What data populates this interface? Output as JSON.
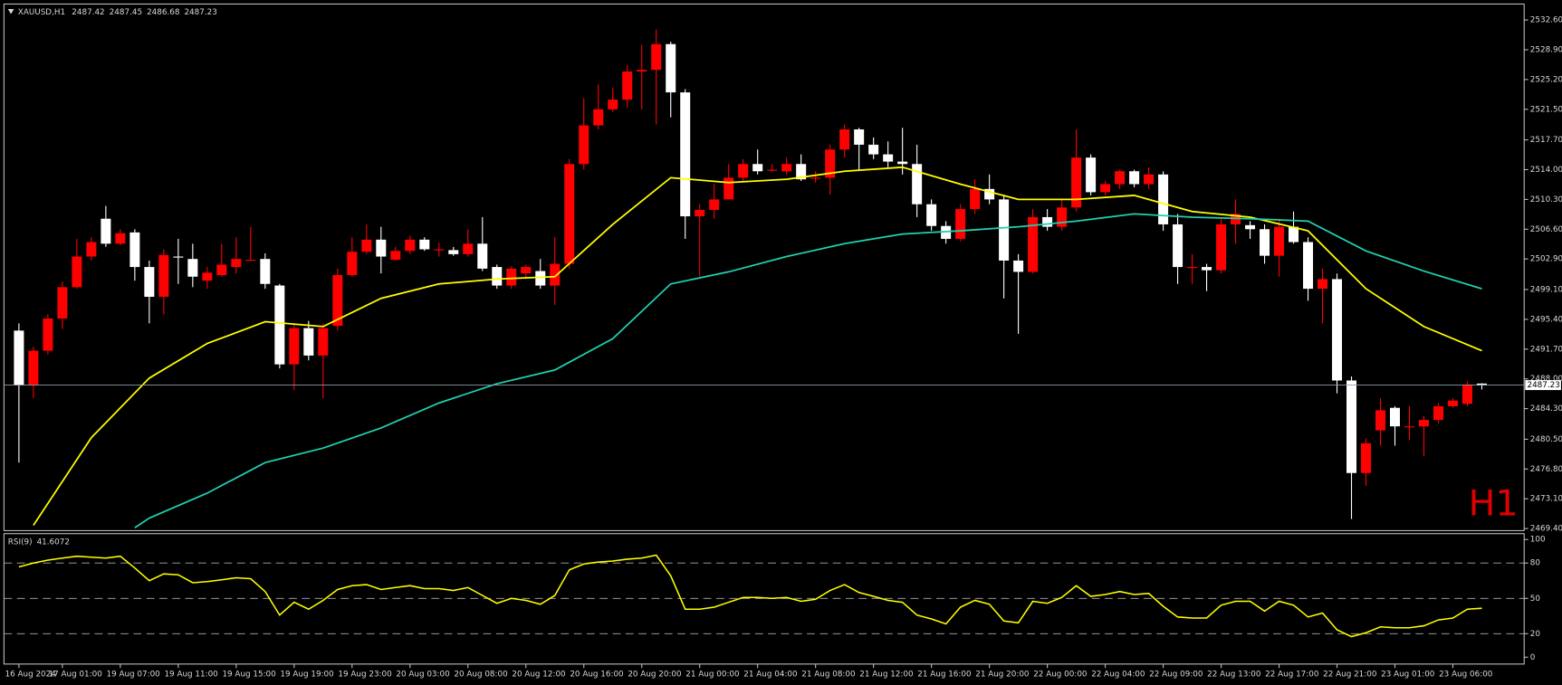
{
  "chart_data": [
    {
      "type": "candlestick",
      "symbol": "XAUUSD,H1",
      "corner_label": "H1",
      "bull_color": "#ff0000",
      "bear_color": "#ffffff",
      "grid": false,
      "ylim": [
        2469.14,
        2534.58
      ],
      "yticks": [
        {
          "value": 2532.6,
          "label": "2532.60"
        },
        {
          "value": 2528.9,
          "label": "2528.90"
        },
        {
          "value": 2525.2,
          "label": "2525.20"
        },
        {
          "value": 2521.5,
          "label": "2521.50"
        },
        {
          "value": 2517.7,
          "label": "2517.70"
        },
        {
          "value": 2514.0,
          "label": "2514.00"
        },
        {
          "value": 2510.3,
          "label": "2510.30"
        },
        {
          "value": 2506.6,
          "label": "2506.60"
        },
        {
          "value": 2502.9,
          "label": "2502.90"
        },
        {
          "value": 2499.1,
          "label": "2499.10"
        },
        {
          "value": 2495.4,
          "label": "2495.40"
        },
        {
          "value": 2491.7,
          "label": "2491.70"
        },
        {
          "value": 2488.0,
          "label": "2488.00"
        },
        {
          "value": 2484.3,
          "label": "2484.30"
        },
        {
          "value": 2480.5,
          "label": "2480.50"
        },
        {
          "value": 2476.8,
          "label": "2476.80"
        },
        {
          "value": 2473.1,
          "label": "2473.10"
        },
        {
          "value": 2469.4,
          "label": "2469.40"
        }
      ],
      "xticks": [
        {
          "value": 0,
          "label": "16 Aug 2024"
        },
        {
          "value": 3,
          "label": "17 Aug 01:00"
        },
        {
          "value": 7,
          "label": "19 Aug 07:00"
        },
        {
          "value": 11,
          "label": "19 Aug 11:00"
        },
        {
          "value": 15,
          "label": "19 Aug 15:00"
        },
        {
          "value": 19,
          "label": "19 Aug 19:00"
        },
        {
          "value": 23,
          "label": "19 Aug 23:00"
        },
        {
          "value": 27,
          "label": "20 Aug 03:00"
        },
        {
          "value": 31,
          "label": "20 Aug 08:00"
        },
        {
          "value": 35,
          "label": "20 Aug 12:00"
        },
        {
          "value": 39,
          "label": "20 Aug 16:00"
        },
        {
          "value": 43,
          "label": "20 Aug 20:00"
        },
        {
          "value": 47,
          "label": "21 Aug 00:00"
        },
        {
          "value": 51,
          "label": "21 Aug 04:00"
        },
        {
          "value": 55,
          "label": "21 Aug 08:00"
        },
        {
          "value": 59,
          "label": "21 Aug 12:00"
        },
        {
          "value": 63,
          "label": "21 Aug 16:00"
        },
        {
          "value": 67,
          "label": "21 Aug 20:00"
        },
        {
          "value": 71,
          "label": "22 Aug 00:00"
        },
        {
          "value": 75,
          "label": "22 Aug 04:00"
        },
        {
          "value": 79,
          "label": "22 Aug 09:00"
        },
        {
          "value": 83,
          "label": "22 Aug 13:00"
        },
        {
          "value": 87,
          "label": "22 Aug 17:00"
        },
        {
          "value": 91,
          "label": "22 Aug 21:00"
        },
        {
          "value": 95,
          "label": "23 Aug 01:00"
        },
        {
          "value": 99,
          "label": "23 Aug 06:00"
        }
      ],
      "open": [
        2494.0,
        2487.2,
        2491.5,
        2495.5,
        2499.4,
        2503.2,
        2507.9,
        2504.8,
        2506.2,
        2501.9,
        2498.2,
        2503.2,
        2502.9,
        2500.2,
        2500.9,
        2501.9,
        2502.7,
        2502.9,
        2499.6,
        2489.8,
        2494.3,
        2490.9,
        2494.6,
        2500.9,
        2503.8,
        2505.3,
        2502.8,
        2503.9,
        2505.3,
        2504.1,
        2504.0,
        2503.5,
        2504.8,
        2501.9,
        2499.6,
        2501.1,
        2501.4,
        2499.6,
        2502.3,
        2514.7,
        2519.5,
        2521.5,
        2522.7,
        2526.2,
        2526.4,
        2529.6,
        2523.6,
        2508.2,
        2509.0,
        2510.3,
        2513.0,
        2514.7,
        2514.0,
        2513.8,
        2514.7,
        2513.0,
        2513.0,
        2516.5,
        2519.0,
        2517.1,
        2515.9,
        2515.0,
        2514.7,
        2509.7,
        2507.0,
        2505.4,
        2509.1,
        2511.6,
        2510.3,
        2502.7,
        2501.3,
        2508.1,
        2506.9,
        2509.3,
        2515.5,
        2511.2,
        2512.2,
        2513.8,
        2512.2,
        2513.4,
        2507.2,
        2501.9,
        2501.9,
        2501.5,
        2507.2,
        2507.1,
        2506.6,
        2503.3,
        2506.9,
        2505.0,
        2499.2,
        2500.4,
        2487.8,
        2476.3,
        2481.6,
        2484.4,
        2482.1,
        2482.1,
        2482.9,
        2484.6,
        2484.9,
        2487.42
      ],
      "high": [
        2494.9,
        2492.0,
        2496.0,
        2500.1,
        2505.4,
        2505.6,
        2509.5,
        2506.6,
        2506.6,
        2502.7,
        2504.1,
        2505.4,
        2504.8,
        2501.9,
        2504.8,
        2505.6,
        2506.9,
        2503.6,
        2499.8,
        2494.9,
        2495.2,
        2494.9,
        2501.7,
        2505.6,
        2507.2,
        2506.9,
        2504.4,
        2505.8,
        2505.6,
        2504.9,
        2504.4,
        2506.6,
        2508.1,
        2502.2,
        2502.0,
        2502.2,
        2502.9,
        2505.6,
        2515.3,
        2522.9,
        2524.6,
        2524.2,
        2527.0,
        2529.5,
        2531.4,
        2529.9,
        2524.0,
        2509.7,
        2512.2,
        2514.7,
        2515.3,
        2516.5,
        2514.7,
        2515.5,
        2515.9,
        2513.8,
        2517.1,
        2519.6,
        2519.2,
        2518.0,
        2517.5,
        2519.2,
        2517.1,
        2510.3,
        2507.6,
        2509.7,
        2512.8,
        2513.4,
        2510.9,
        2503.5,
        2509.1,
        2509.1,
        2510.3,
        2519.0,
        2515.9,
        2512.6,
        2514.0,
        2514.0,
        2514.3,
        2513.8,
        2508.5,
        2503.5,
        2502.3,
        2507.9,
        2510.3,
        2507.6,
        2507.2,
        2507.9,
        2508.8,
        2505.6,
        2501.7,
        2501.1,
        2488.3,
        2480.6,
        2485.6,
        2484.6,
        2484.6,
        2483.4,
        2485.0,
        2485.6,
        2487.7,
        2487.45
      ],
      "low": [
        2477.6,
        2485.6,
        2491.0,
        2494.2,
        2499.2,
        2502.7,
        2504.4,
        2504.6,
        2500.2,
        2494.9,
        2496.0,
        2499.8,
        2499.4,
        2499.2,
        2500.7,
        2501.1,
        2502.7,
        2499.2,
        2489.3,
        2486.6,
        2490.3,
        2485.6,
        2494.0,
        2500.7,
        2503.5,
        2501.1,
        2502.7,
        2503.5,
        2503.9,
        2503.2,
        2503.3,
        2503.2,
        2501.4,
        2499.2,
        2499.2,
        2500.4,
        2499.2,
        2497.2,
        2501.7,
        2514.0,
        2519.0,
        2521.2,
        2521.7,
        2521.5,
        2519.6,
        2520.5,
        2505.4,
        2500.7,
        2507.9,
        2510.3,
        2512.6,
        2513.4,
        2513.8,
        2513.4,
        2512.6,
        2512.4,
        2510.9,
        2515.5,
        2514.0,
        2515.3,
        2514.3,
        2513.4,
        2508.1,
        2506.4,
        2504.8,
        2505.1,
        2508.5,
        2509.7,
        2498.0,
        2493.6,
        2501.1,
        2506.4,
        2506.4,
        2508.8,
        2510.8,
        2510.8,
        2511.6,
        2511.8,
        2511.6,
        2506.4,
        2499.8,
        2499.8,
        2498.9,
        2501.1,
        2504.8,
        2505.4,
        2502.3,
        2500.7,
        2504.8,
        2497.7,
        2494.9,
        2486.2,
        2470.6,
        2474.7,
        2479.7,
        2479.7,
        2480.4,
        2478.4,
        2482.5,
        2484.4,
        2484.6,
        2486.68
      ],
      "close": [
        2487.2,
        2491.5,
        2495.5,
        2499.4,
        2503.2,
        2505.0,
        2504.8,
        2506.1,
        2501.9,
        2498.2,
        2503.4,
        2503.1,
        2500.7,
        2501.2,
        2502.2,
        2502.9,
        2502.8,
        2499.8,
        2489.8,
        2494.3,
        2490.9,
        2494.3,
        2500.9,
        2503.8,
        2505.3,
        2503.2,
        2503.9,
        2505.3,
        2504.1,
        2504.1,
        2503.5,
        2504.8,
        2501.7,
        2499.6,
        2501.7,
        2501.9,
        2499.6,
        2502.3,
        2514.7,
        2519.5,
        2521.5,
        2522.7,
        2526.2,
        2526.4,
        2529.6,
        2523.6,
        2508.2,
        2509.0,
        2510.3,
        2513.0,
        2514.7,
        2513.8,
        2514.0,
        2514.7,
        2512.8,
        2513.0,
        2516.5,
        2519.0,
        2517.1,
        2515.9,
        2515.0,
        2514.7,
        2509.7,
        2507.0,
        2505.4,
        2509.1,
        2511.6,
        2510.3,
        2502.7,
        2501.3,
        2508.1,
        2506.9,
        2509.3,
        2515.5,
        2511.2,
        2512.2,
        2513.8,
        2512.2,
        2513.4,
        2507.2,
        2501.9,
        2501.9,
        2501.5,
        2507.2,
        2508.5,
        2506.6,
        2503.3,
        2506.9,
        2505.0,
        2499.2,
        2500.4,
        2487.8,
        2476.3,
        2480.0,
        2484.1,
        2482.1,
        2482.1,
        2482.9,
        2484.6,
        2485.3,
        2487.3,
        2487.23
      ],
      "overlays": [
        {
          "color": "#ffff00",
          "x": [
            1,
            5,
            9,
            13,
            17,
            21,
            25,
            29,
            33,
            37,
            41,
            45,
            49,
            53,
            57,
            61,
            65,
            69,
            73,
            77,
            81,
            85,
            89,
            93,
            97,
            101
          ],
          "values": [
            2469.8,
            2480.7,
            2488.1,
            2492.4,
            2495.1,
            2494.5,
            2498.0,
            2499.8,
            2500.4,
            2500.7,
            2507.2,
            2513.0,
            2512.4,
            2512.8,
            2513.8,
            2514.3,
            2512.2,
            2510.3,
            2510.3,
            2510.8,
            2508.8,
            2508.1,
            2506.4,
            2499.2,
            2494.5,
            2491.5
          ]
        },
        {
          "color": "#20d0b0",
          "x": [
            8,
            9,
            13,
            17,
            21,
            25,
            29,
            33,
            37,
            41,
            45,
            49,
            53,
            57,
            61,
            65,
            69,
            73,
            77,
            81,
            85,
            89,
            93,
            97,
            101
          ],
          "values": [
            2469.5,
            2470.7,
            2473.8,
            2477.6,
            2479.4,
            2481.9,
            2485.0,
            2487.4,
            2489.1,
            2493.0,
            2499.8,
            2501.3,
            2503.2,
            2504.8,
            2506.0,
            2506.4,
            2506.9,
            2507.6,
            2508.5,
            2508.1,
            2507.9,
            2507.6,
            2503.9,
            2501.4,
            2499.2
          ]
        }
      ]
    },
    {
      "type": "line",
      "title": "RSI(9)",
      "color": "#ffff00",
      "ylim": [
        -5.8,
        105
      ],
      "yticks": [
        100,
        80,
        50,
        20,
        0
      ],
      "levels": [
        80,
        50,
        20
      ],
      "values": [
        76.7,
        80,
        82.5,
        84.2,
        85.8,
        85,
        84.2,
        85.8,
        75.8,
        65,
        70.8,
        70,
        63.3,
        64.2,
        65.8,
        67.5,
        66.7,
        55.8,
        35.8,
        46.7,
        40.8,
        48.3,
        57.5,
        60.8,
        61.7,
        57.5,
        59.2,
        60.8,
        58.3,
        58.3,
        56.7,
        59.2,
        52.5,
        45.8,
        50,
        48.3,
        45,
        52.5,
        74.2,
        79.2,
        80.8,
        81.7,
        83.3,
        84.2,
        86.7,
        69.2,
        40.8,
        40.8,
        42.5,
        46.7,
        50.8,
        50.8,
        50,
        50.8,
        47.5,
        49.2,
        56.7,
        61.7,
        55,
        51.7,
        48.3,
        46.7,
        35.8,
        32.5,
        28.3,
        42.5,
        48.3,
        45,
        30.8,
        29.2,
        47.5,
        45.8,
        50.8,
        60.8,
        51.7,
        53.3,
        55.8,
        53.3,
        54.2,
        43.3,
        34.2,
        33.3,
        33.3,
        44.2,
        47.5,
        47.5,
        39.2,
        47.5,
        44.2,
        34.2,
        37.5,
        23.3,
        17.5,
        20.8,
        25.8,
        25,
        25,
        26.7,
        31.7,
        33.3,
        40.8,
        41.6072
      ]
    }
  ]
}
